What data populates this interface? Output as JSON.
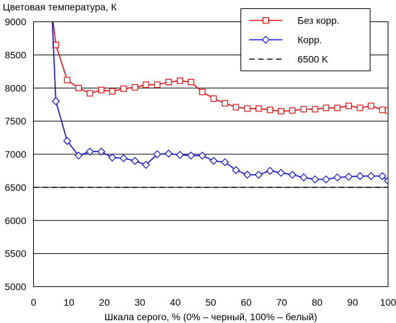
{
  "chart_data": {
    "type": "line",
    "title": "Цветовая температура, К",
    "xlabel": "Шкала серого, % (0% – черный, 100% – белый)",
    "ylabel": "",
    "xlim": [
      0,
      100
    ],
    "ylim": [
      5000,
      9000
    ],
    "xticks": [
      "0",
      "10",
      "20",
      "30",
      "40",
      "50",
      "60",
      "70",
      "80",
      "90",
      "100"
    ],
    "yticks": [
      "5000",
      "5500",
      "6000",
      "6500",
      "7000",
      "7500",
      "8000",
      "8500",
      "9000"
    ],
    "grid": "horizontal",
    "legend_position": "top-right",
    "series": [
      {
        "name": "Без корр.",
        "color": "#e01010",
        "marker": "square",
        "x": [
          5.5,
          6.3,
          9.5,
          12.7,
          15.9,
          19.1,
          22.2,
          25.4,
          28.6,
          31.7,
          34.9,
          38.1,
          41.3,
          44.4,
          47.6,
          50.8,
          54.0,
          57.1,
          60.3,
          63.5,
          66.7,
          69.8,
          73.0,
          76.2,
          79.4,
          82.5,
          85.7,
          88.9,
          92.1,
          95.2,
          98.4,
          100
        ],
        "y": [
          9000,
          8650,
          8120,
          8000,
          7920,
          7970,
          7950,
          7990,
          8010,
          8050,
          8050,
          8090,
          8110,
          8090,
          7940,
          7840,
          7770,
          7710,
          7690,
          7690,
          7670,
          7650,
          7660,
          7680,
          7680,
          7700,
          7700,
          7730,
          7700,
          7730,
          7670,
          7660
        ]
      },
      {
        "name": "Корр.",
        "color": "#1010e0",
        "marker": "diamond",
        "x": [
          5.3,
          6.3,
          9.5,
          12.7,
          15.9,
          19.1,
          22.2,
          25.4,
          28.6,
          31.7,
          34.9,
          38.1,
          41.3,
          44.4,
          47.6,
          50.8,
          54.0,
          57.1,
          60.3,
          63.5,
          66.7,
          69.8,
          73.0,
          76.2,
          79.4,
          82.5,
          85.7,
          88.9,
          92.1,
          95.2,
          98.4,
          100
        ],
        "y": [
          9000,
          7800,
          7200,
          6980,
          7040,
          7040,
          6950,
          6940,
          6900,
          6840,
          7000,
          7010,
          6990,
          6980,
          6980,
          6900,
          6880,
          6760,
          6690,
          6690,
          6750,
          6720,
          6690,
          6650,
          6620,
          6620,
          6650,
          6660,
          6670,
          6670,
          6670,
          6600
        ]
      },
      {
        "name": "6500 K",
        "color": "#000000",
        "marker": "none",
        "dash": true,
        "x": [
          0,
          100
        ],
        "y": [
          6500,
          6500
        ]
      }
    ]
  }
}
